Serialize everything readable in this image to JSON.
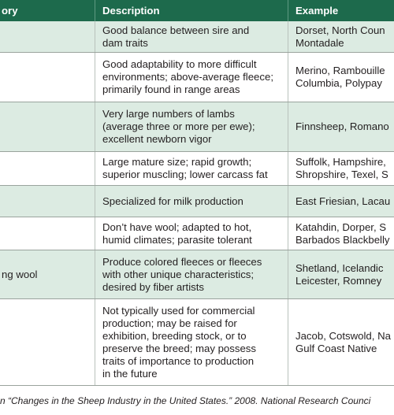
{
  "table": {
    "header": [
      "ory",
      "Description",
      "Example"
    ],
    "rows": [
      {
        "description": [
          "Good balance between sire and",
          "dam traits"
        ],
        "example": [
          "Dorset, North Coun",
          "Montadale"
        ]
      },
      {
        "description": [
          "Good adaptability to more difficult",
          "environments; above-average fleece;",
          "primarily found in range areas"
        ],
        "example": [
          "Merino, Rambouille",
          "Columbia, Polypay"
        ]
      },
      {
        "description": [
          "Very large numbers of lambs",
          "(average three or more per ewe);",
          "excellent newborn vigor"
        ],
        "example": [
          "Finnsheep, Romano"
        ]
      },
      {
        "description": [
          "Large mature size; rapid growth;",
          "superior muscling; lower carcass fat"
        ],
        "example": [
          "Suffolk, Hampshire,",
          "Shropshire, Texel, S"
        ]
      },
      {
        "description": [
          "Specialized for milk production"
        ],
        "example": [
          "East Friesian, Lacau"
        ]
      },
      {
        "description": [
          "Don’t have wool; adapted to hot,",
          "humid climates; parasite tolerant"
        ],
        "example": [
          "Katahdin, Dorper, S",
          "Barbados Blackbelly"
        ]
      },
      {
        "category": [
          "ng wool"
        ],
        "description": [
          "Produce colored fleeces or fleeces",
          "with other unique characteristics;",
          "desired by fiber artists"
        ],
        "example": [
          "Shetland, Icelandic",
          "Leicester, Romney"
        ]
      },
      {
        "description": [
          "Not typically used for commercial",
          "production; may be raised for",
          "exhibition, breeding stock, or to",
          "preserve the breed; may possess",
          "traits of importance to production",
          "in the future"
        ],
        "example": [
          "Jacob, Cotswold, Na",
          "Gulf Coast Native"
        ]
      }
    ],
    "source": "n “Changes in the Sheep Industry in the United States.” 2008. National Research Counci"
  }
}
